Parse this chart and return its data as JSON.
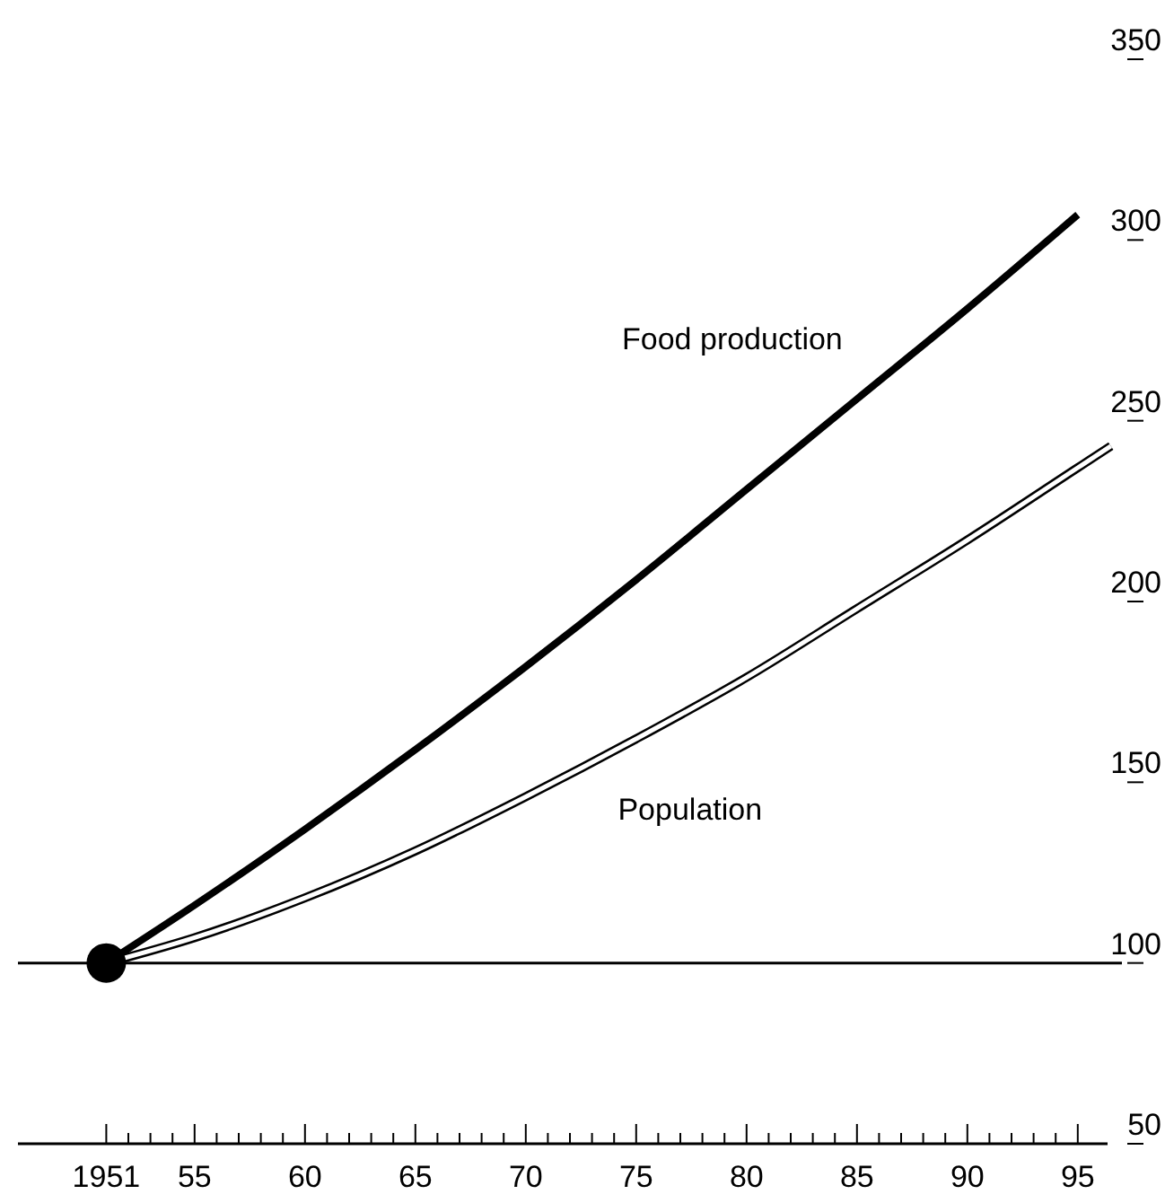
{
  "chart_data": {
    "type": "line",
    "xlim": [
      1947,
      1997
    ],
    "ylim": [
      50,
      350
    ],
    "xticks": [
      {
        "value": 1951,
        "label": "1951"
      },
      {
        "value": 1952,
        "label": null
      },
      {
        "value": 1953,
        "label": null
      },
      {
        "value": 1954,
        "label": null
      },
      {
        "value": 1955,
        "label": "55"
      },
      {
        "value": 1956,
        "label": null
      },
      {
        "value": 1957,
        "label": null
      },
      {
        "value": 1958,
        "label": null
      },
      {
        "value": 1959,
        "label": null
      },
      {
        "value": 1960,
        "label": "60"
      },
      {
        "value": 1961,
        "label": null
      },
      {
        "value": 1962,
        "label": null
      },
      {
        "value": 1963,
        "label": null
      },
      {
        "value": 1964,
        "label": null
      },
      {
        "value": 1965,
        "label": "65"
      },
      {
        "value": 1966,
        "label": null
      },
      {
        "value": 1967,
        "label": null
      },
      {
        "value": 1968,
        "label": null
      },
      {
        "value": 1969,
        "label": null
      },
      {
        "value": 1970,
        "label": "70"
      },
      {
        "value": 1971,
        "label": null
      },
      {
        "value": 1972,
        "label": null
      },
      {
        "value": 1973,
        "label": null
      },
      {
        "value": 1974,
        "label": null
      },
      {
        "value": 1975,
        "label": "75"
      },
      {
        "value": 1976,
        "label": null
      },
      {
        "value": 1977,
        "label": null
      },
      {
        "value": 1978,
        "label": null
      },
      {
        "value": 1979,
        "label": null
      },
      {
        "value": 1980,
        "label": "80"
      },
      {
        "value": 1981,
        "label": null
      },
      {
        "value": 1982,
        "label": null
      },
      {
        "value": 1983,
        "label": null
      },
      {
        "value": 1984,
        "label": null
      },
      {
        "value": 1985,
        "label": "85"
      },
      {
        "value": 1986,
        "label": null
      },
      {
        "value": 1987,
        "label": null
      },
      {
        "value": 1988,
        "label": null
      },
      {
        "value": 1989,
        "label": null
      },
      {
        "value": 1990,
        "label": "90"
      },
      {
        "value": 1991,
        "label": null
      },
      {
        "value": 1992,
        "label": null
      },
      {
        "value": 1993,
        "label": null
      },
      {
        "value": 1994,
        "label": null
      },
      {
        "value": 1995,
        "label": "95"
      }
    ],
    "yticks": [
      50,
      100,
      150,
      200,
      250,
      300,
      350
    ],
    "grid": false,
    "legend": false,
    "marker": "none",
    "ref_lines": [
      {
        "axis": "y",
        "value": 100,
        "color": "#000000"
      }
    ],
    "series": [
      {
        "name": "Food production",
        "color": "#000000",
        "x": [
          1951,
          1955,
          1960,
          1965,
          1970,
          1975,
          1980,
          1985,
          1990,
          1995
        ],
        "values": [
          100,
          116,
          137,
          159,
          182,
          206,
          231,
          256,
          281,
          307
        ]
      },
      {
        "name": "Population",
        "color": "#000000",
        "x": [
          1951,
          1955,
          1960,
          1965,
          1970,
          1975,
          1980,
          1985,
          1990,
          1995,
          1996.5
        ],
        "values": [
          100,
          107,
          118,
          131,
          146,
          162,
          179,
          198,
          217,
          237,
          243
        ]
      },
      {
        "type": "scatter",
        "marker": "circle",
        "color": "#000000",
        "x": [
          1951
        ],
        "values": [
          100
        ]
      }
    ]
  }
}
